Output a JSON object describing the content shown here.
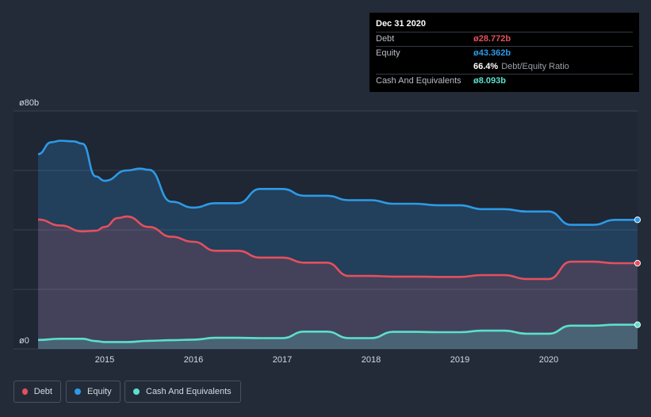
{
  "tooltip": {
    "date": "Dec 31 2020",
    "rows": [
      {
        "label": "Debt",
        "value": "ø28.772b",
        "color": "#e4505d"
      },
      {
        "label": "Equity",
        "value": "ø43.362b",
        "color": "#2d9ae6"
      },
      {
        "label": "",
        "value": "66.4%",
        "suffix": "Debt/Equity Ratio",
        "color": "#ffffff"
      },
      {
        "label": "Cash And Equivalents",
        "value": "ø8.093b",
        "color": "#5be0cb"
      }
    ]
  },
  "legend": [
    {
      "label": "Debt",
      "color": "#e4505d"
    },
    {
      "label": "Equity",
      "color": "#2d9ae6"
    },
    {
      "label": "Cash And Equivalents",
      "color": "#5be0cb"
    }
  ],
  "chart_data": {
    "type": "area",
    "ylim": [
      0,
      80
    ],
    "ytick_labels": [
      {
        "value": 80,
        "label": "ø80b"
      },
      {
        "value": 0,
        "label": "ø0"
      }
    ],
    "xlim": [
      2014.25,
      2021.0
    ],
    "xticks": [
      2015,
      2016,
      2017,
      2018,
      2019,
      2020
    ],
    "grid": true,
    "legend_position": "bottom-left",
    "series": [
      {
        "name": "Debt",
        "color": "#e4505d",
        "x": [
          2014.25,
          2014.5,
          2014.75,
          2014.9,
          2015.0,
          2015.15,
          2015.25,
          2015.5,
          2015.75,
          2016.0,
          2016.25,
          2016.5,
          2016.75,
          2017.0,
          2017.25,
          2017.5,
          2017.75,
          2018.0,
          2018.25,
          2018.5,
          2018.75,
          2019.0,
          2019.25,
          2019.5,
          2019.75,
          2020.0,
          2020.25,
          2020.5,
          2020.75,
          2021.0
        ],
        "y": [
          43.5,
          41.5,
          39.5,
          39.7,
          41.0,
          44.0,
          44.5,
          41.0,
          37.7,
          36.0,
          33.0,
          33.0,
          30.7,
          30.7,
          29.0,
          29.0,
          24.5,
          24.5,
          24.3,
          24.3,
          24.2,
          24.2,
          24.8,
          24.8,
          23.5,
          23.5,
          29.3,
          29.3,
          28.8,
          28.8
        ]
      },
      {
        "name": "Equity",
        "color": "#2d9ae6",
        "x": [
          2014.25,
          2014.4,
          2014.5,
          2014.65,
          2014.75,
          2014.9,
          2015.0,
          2015.25,
          2015.4,
          2015.5,
          2015.75,
          2016.0,
          2016.25,
          2016.5,
          2016.75,
          2017.0,
          2017.25,
          2017.5,
          2017.75,
          2018.0,
          2018.25,
          2018.5,
          2018.75,
          2019.0,
          2019.25,
          2019.5,
          2019.75,
          2020.0,
          2020.25,
          2020.5,
          2020.75,
          2021.0
        ],
        "y": [
          65.5,
          69.5,
          70.0,
          69.8,
          69.0,
          58.0,
          56.5,
          60.0,
          60.6,
          60.2,
          49.5,
          47.5,
          49.0,
          49.0,
          53.8,
          53.8,
          51.5,
          51.5,
          50.0,
          50.0,
          48.8,
          48.8,
          48.3,
          48.3,
          47.0,
          47.0,
          46.2,
          46.2,
          41.7,
          41.7,
          43.4,
          43.4
        ]
      },
      {
        "name": "Cash And Equivalents",
        "color": "#5be0cb",
        "x": [
          2014.25,
          2014.5,
          2014.75,
          2014.9,
          2015.0,
          2015.25,
          2015.5,
          2015.75,
          2016.0,
          2016.25,
          2016.5,
          2016.75,
          2017.0,
          2017.25,
          2017.5,
          2017.75,
          2018.0,
          2018.25,
          2018.5,
          2018.75,
          2019.0,
          2019.25,
          2019.5,
          2019.75,
          2020.0,
          2020.25,
          2020.5,
          2020.75,
          2021.0
        ],
        "y": [
          3.0,
          3.4,
          3.4,
          2.6,
          2.3,
          2.3,
          2.7,
          2.9,
          3.1,
          3.7,
          3.7,
          3.6,
          3.6,
          5.8,
          5.8,
          3.6,
          3.6,
          5.7,
          5.7,
          5.6,
          5.6,
          6.1,
          6.1,
          5.1,
          5.1,
          7.8,
          7.8,
          8.1,
          8.1
        ]
      }
    ]
  }
}
